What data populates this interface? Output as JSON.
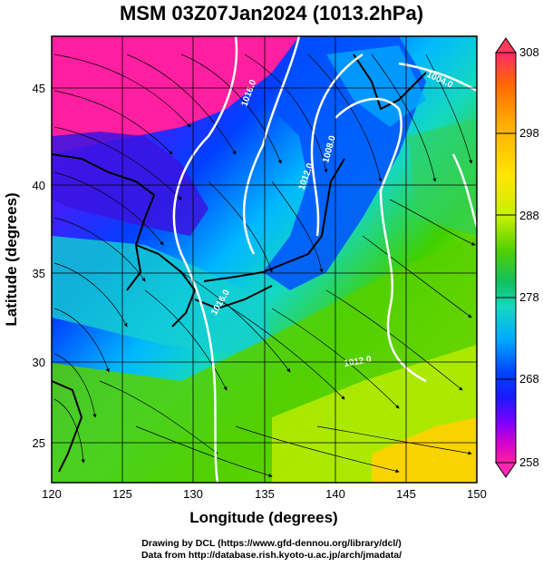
{
  "title": "MSM 03Z07Jan2024 (1013.2hPa)",
  "x_axis": {
    "label": "Longitude (degrees)",
    "ticks": [
      "120",
      "125",
      "130",
      "135",
      "140",
      "145",
      "150"
    ],
    "range": [
      120,
      150
    ]
  },
  "y_axis": {
    "label": "Latitude  (degrees)",
    "ticks": [
      "25",
      "30",
      "35",
      "40",
      "45"
    ],
    "range": [
      22.4,
      47.6
    ]
  },
  "colorbar": {
    "ticks": [
      "308",
      "298",
      "288",
      "278",
      "268",
      "258"
    ],
    "range": [
      258,
      308
    ],
    "colors": [
      "#ff2a6b",
      "#ff6a00",
      "#ffb000",
      "#ffe600",
      "#c6f000",
      "#54d000",
      "#10c060",
      "#16d8c0",
      "#00a8ff",
      "#0044ff",
      "#1a1aff",
      "#7a00ff",
      "#d000d0",
      "#ff20a0"
    ]
  },
  "contours": {
    "labels": [
      "1016.0",
      "1012.0",
      "1008.0",
      "1004.0",
      "1016.0",
      "1012.0"
    ],
    "color": "#ffffff"
  },
  "credits": {
    "line1": "Drawing by DCL (https://www.gfd-dennou.org/library/dcl/)",
    "line2": "Data from http://database.rish.kyoto-u.ac.jp/arch/jmadata/"
  }
}
